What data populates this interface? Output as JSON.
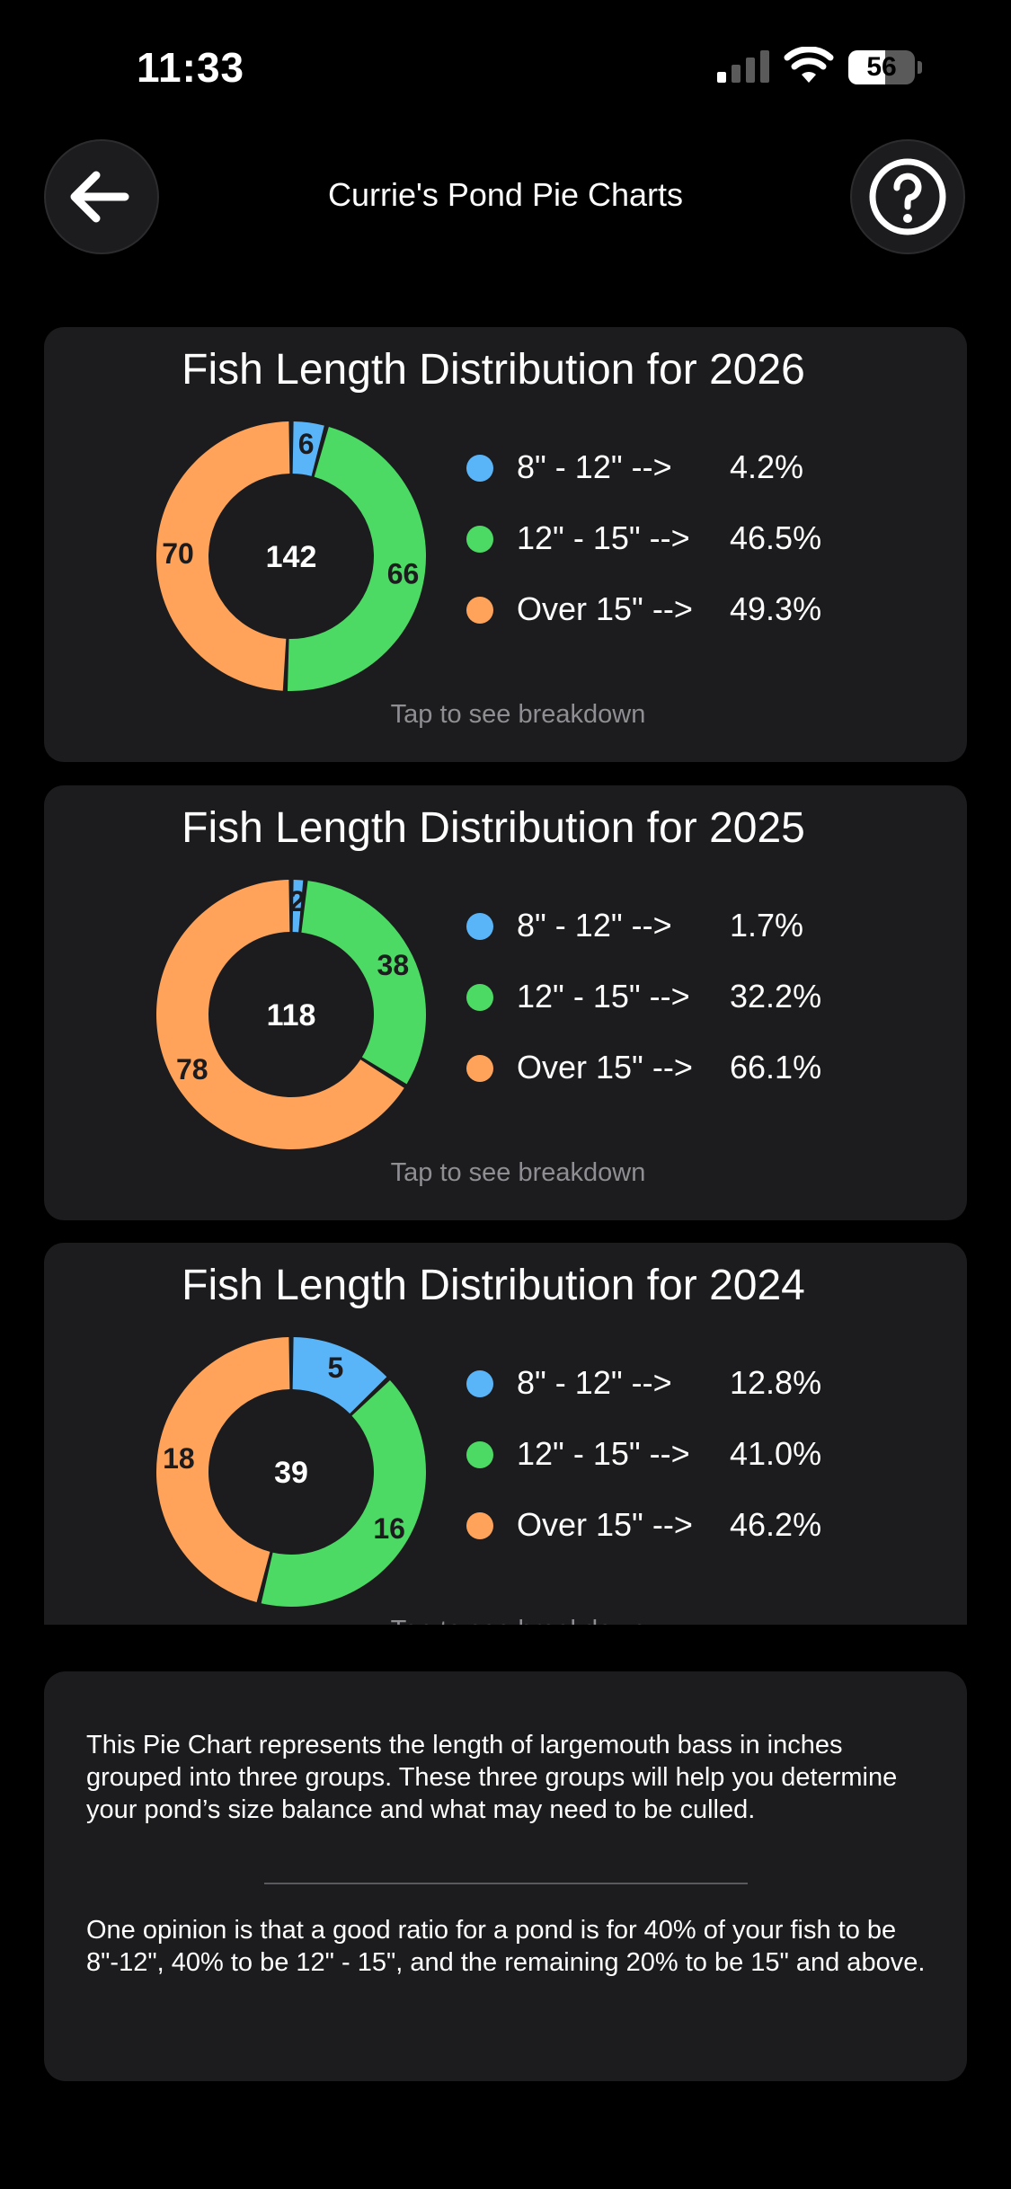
{
  "status_bar": {
    "time": "11:33",
    "battery_level": "56",
    "battery_fraction": 0.56
  },
  "header": {
    "title": "Currie's Pond Pie Charts"
  },
  "colors": {
    "blue": "#5ab4f8",
    "green": "#4cd964",
    "orange": "#ffa35a",
    "card": "#1c1c1e"
  },
  "chart_data": [
    {
      "type": "pie",
      "title": "Fish Length Distribution for 2026",
      "center_label": "142",
      "slices": [
        {
          "label": "8\" - 12\" -->",
          "value": 6,
          "percent": "4.2%",
          "color": "#5ab4f8"
        },
        {
          "label": "12\" - 15\" -->",
          "value": 66,
          "percent": "46.5%",
          "color": "#4cd964"
        },
        {
          "label": "Over 15\" -->",
          "value": 70,
          "percent": "49.3%",
          "color": "#ffa35a"
        }
      ],
      "footer": "Tap to see breakdown"
    },
    {
      "type": "pie",
      "title": "Fish Length Distribution for 2025",
      "center_label": "118",
      "slices": [
        {
          "label": "8\" - 12\" -->",
          "value": 2,
          "percent": "1.7%",
          "color": "#5ab4f8"
        },
        {
          "label": "12\" - 15\" -->",
          "value": 38,
          "percent": "32.2%",
          "color": "#4cd964"
        },
        {
          "label": "Over 15\" -->",
          "value": 78,
          "percent": "66.1%",
          "color": "#ffa35a"
        }
      ],
      "footer": "Tap to see breakdown"
    },
    {
      "type": "pie",
      "title": "Fish Length Distribution for 2024",
      "center_label": "39",
      "slices": [
        {
          "label": "8\" - 12\" -->",
          "value": 5,
          "percent": "12.8%",
          "color": "#5ab4f8"
        },
        {
          "label": "12\" - 15\" -->",
          "value": 16,
          "percent": "41.0%",
          "color": "#4cd964"
        },
        {
          "label": "Over 15\" -->",
          "value": 18,
          "percent": "46.2%",
          "color": "#ffa35a"
        }
      ],
      "footer": "Tap to see breakdown"
    }
  ],
  "info": {
    "paragraph1": "This Pie Chart represents the length of largemouth bass in inches grouped into three groups. These three groups will help you determine your pond’s size balance and what may need to be culled.",
    "paragraph2": "One opinion is that a good ratio for a pond is for 40% of your fish to be 8\"-12\", 40% to be 12\" - 15\", and the remaining 20% to be 15\" and above."
  },
  "icons": {
    "back": "arrow-left-icon",
    "help": "question-mark-icon"
  }
}
